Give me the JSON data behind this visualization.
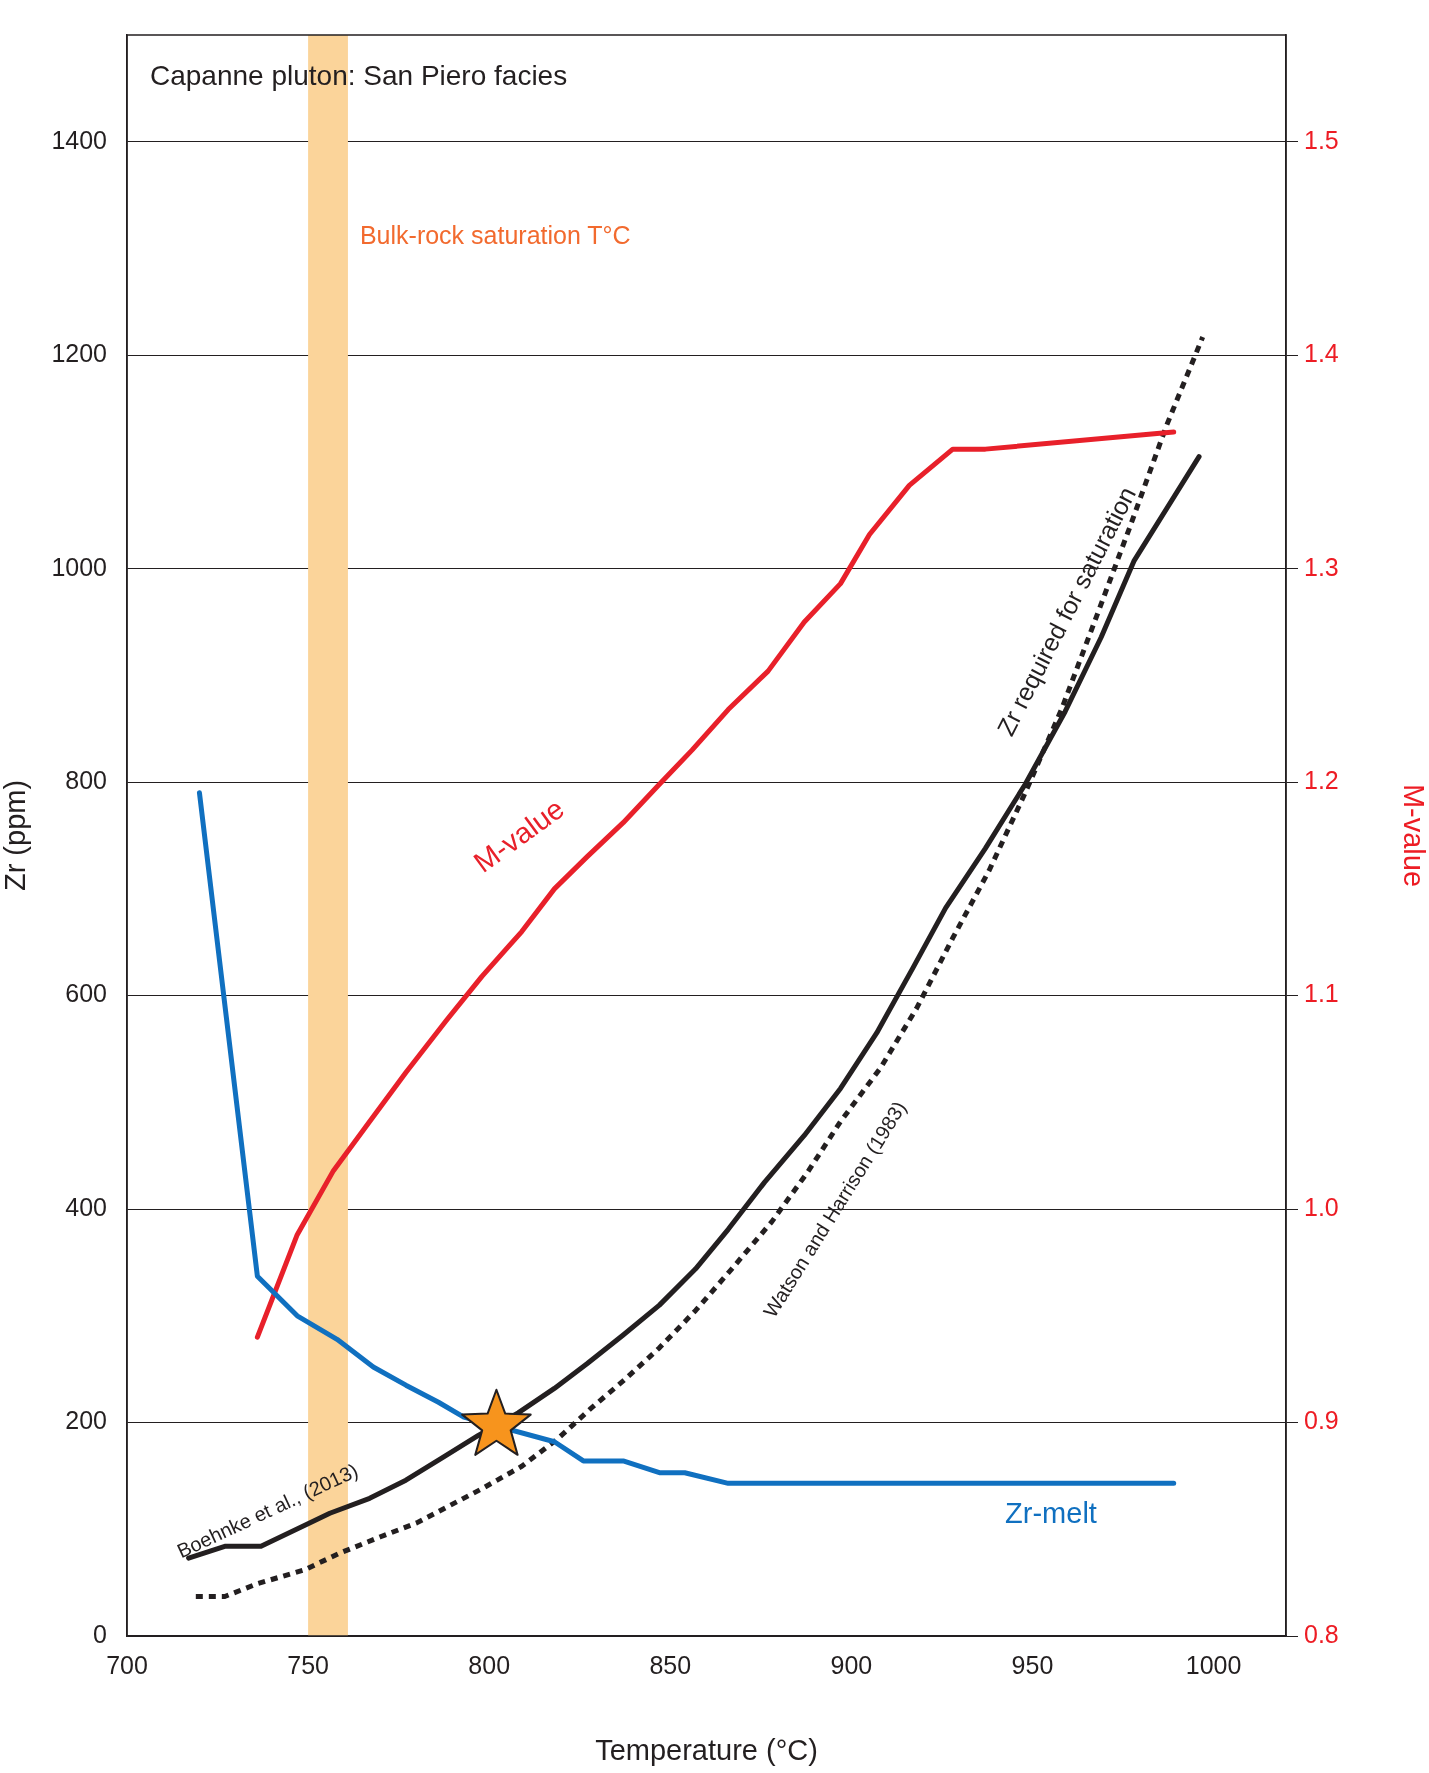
{
  "chart_data": {
    "type": "line",
    "title": "Capanne pluton: San Piero facies",
    "xlabel": "Temperature (°C)",
    "ylabel": "Zr (ppm)",
    "y2label": "M-value",
    "xlim": [
      700,
      1020
    ],
    "xticks": [
      700,
      750,
      800,
      850,
      900,
      950,
      1000
    ],
    "ylim": [
      0,
      1500
    ],
    "yticks": [
      0,
      200,
      400,
      600,
      800,
      1000,
      1200,
      1400
    ],
    "y2lim": [
      0.8,
      1.55
    ],
    "y2ticks": [
      0.8,
      0.9,
      {
        "value": 1,
        "label": "1.0"
      },
      1.1,
      1.2,
      1.3,
      1.4,
      1.5
    ],
    "grid": "y",
    "legend": false,
    "bands": [
      {
        "axis": "x",
        "from": 750,
        "to": 761,
        "label": "Bulk-rock saturation T°C",
        "color": "#fbd49a"
      }
    ],
    "annotations": [
      "Zr required for saturation"
    ],
    "series": [
      {
        "name": "Zr-melt",
        "color": "#1070c0",
        "marker": "none",
        "line_style": "solid",
        "x": [
          720,
          736,
          747,
          758,
          768,
          777,
          786,
          793,
          818,
          826,
          837,
          847,
          854,
          866,
          989
        ],
        "values": [
          790,
          337,
          300,
          278,
          252,
          235,
          219,
          205,
          182,
          164,
          164,
          153,
          153,
          143,
          143
        ]
      },
      {
        "name": "M-value",
        "axis": "y2",
        "color": "#e8202a",
        "marker": "none",
        "line_style": "solid",
        "x": [
          736,
          747,
          757,
          767,
          777,
          788,
          798,
          809,
          818,
          827,
          837,
          847,
          856,
          866,
          877,
          887,
          897,
          905,
          916,
          928,
          937,
          989
        ],
        "values": [
          0.94,
          0.988,
          1.018,
          1.041,
          1.064,
          1.088,
          1.109,
          1.13,
          1.15,
          1.165,
          1.181,
          1.199,
          1.215,
          1.234,
          1.252,
          1.275,
          1.293,
          1.316,
          1.339,
          1.356,
          1.356,
          1.364
        ]
      },
      {
        "name": "Boehnke et al., (2013)",
        "color": "#231f20",
        "marker": "none",
        "line_style": "solid",
        "x": [
          717,
          727,
          737,
          756,
          767,
          777,
          787,
          797,
          808,
          818,
          827,
          837,
          847,
          857,
          866,
          876,
          887,
          897,
          907,
          917,
          926,
          937,
          948,
          959,
          969,
          978,
          996
        ],
        "values": [
          73,
          84,
          84,
          115,
          129,
          146,
          167,
          188,
          209,
          232,
          255,
          282,
          310,
          344,
          381,
          425,
          469,
          513,
          565,
          626,
          682,
          738,
          798,
          866,
          936,
          1007,
          1105
        ]
      },
      {
        "name": "Watson and Harrison (1983)",
        "color": "#231f20",
        "marker": "none",
        "line_style": "dotted",
        "x": [
          719,
          727,
          736,
          749,
          759,
          770,
          780,
          789,
          798,
          809,
          819,
          828,
          837,
          847,
          857,
          867,
          878,
          888,
          897,
          908,
          918,
          928,
          938,
          948,
          958,
          967,
          977,
          987,
          997
        ],
        "values": [
          37,
          37,
          49,
          62,
          78,
          93,
          106,
          122,
          138,
          159,
          185,
          213,
          239,
          270,
          305,
          344,
          388,
          435,
          482,
          532,
          588,
          654,
          717,
          790,
          868,
          949,
          1040,
          1134,
          1217
        ]
      },
      {
        "type": "scatter",
        "color": "#f7941d",
        "marker": "star",
        "x": [
          802
        ],
        "values": [
          197
        ]
      }
    ]
  }
}
